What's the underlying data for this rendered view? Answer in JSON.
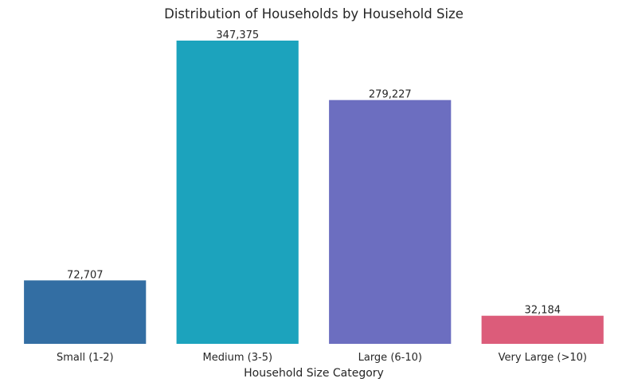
{
  "chart_data": {
    "type": "bar",
    "title": "Distribution of Households by Household Size",
    "xlabel": "Household Size Category",
    "ylabel": "",
    "categories": [
      "Small (1-2)",
      "Medium (3-5)",
      "Large (6-10)",
      "Very Large (>10)"
    ],
    "values": [
      72707,
      347375,
      279227,
      32184
    ],
    "value_labels": [
      "72,707",
      "347,375",
      "279,227",
      "32,184"
    ],
    "colors": [
      "#336ea3",
      "#1ca3bd",
      "#6c6ec0",
      "#dc5c7a"
    ],
    "ylim": [
      0,
      347375
    ],
    "grid": false,
    "legend": "none"
  }
}
